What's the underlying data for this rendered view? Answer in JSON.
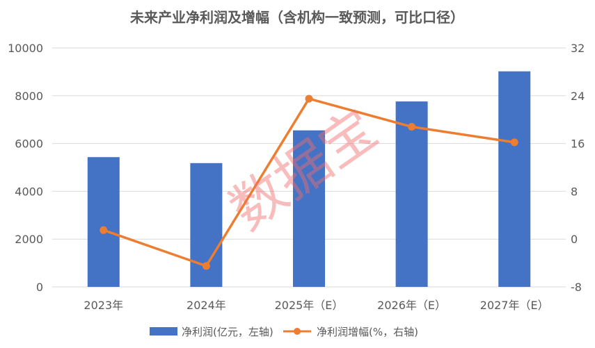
{
  "chart_data": {
    "type": "bar",
    "title": "未来产业净利润及增幅（含机构一致预测，可比口径）",
    "categories": [
      "2023年",
      "2024年",
      "2025年（E）",
      "2026年（E）",
      "2027年（E）"
    ],
    "series": [
      {
        "name": "净利润(亿元，左轴)",
        "type": "bar",
        "axis": "left",
        "values": [
          5430,
          5180,
          6550,
          7760,
          9020
        ]
      },
      {
        "name": "净利润增幅(%，右轴)",
        "type": "line",
        "axis": "right",
        "values": [
          1.5,
          -4.5,
          23.5,
          18.8,
          16.2
        ]
      }
    ],
    "y_left": {
      "range": [
        0,
        10000
      ],
      "ticks": [
        "0",
        "2000",
        "4000",
        "6000",
        "8000",
        "10000"
      ]
    },
    "y_right": {
      "range": [
        -8,
        32
      ],
      "ticks": [
        "-8",
        "0",
        "8",
        "16",
        "24",
        "32"
      ]
    },
    "grid": true,
    "legend": "bottom",
    "colors": {
      "bar": "#4472c4",
      "line": "#ed7d31",
      "grid": "#d9d9d9",
      "text": "#595959"
    }
  },
  "watermark": "数据宝"
}
